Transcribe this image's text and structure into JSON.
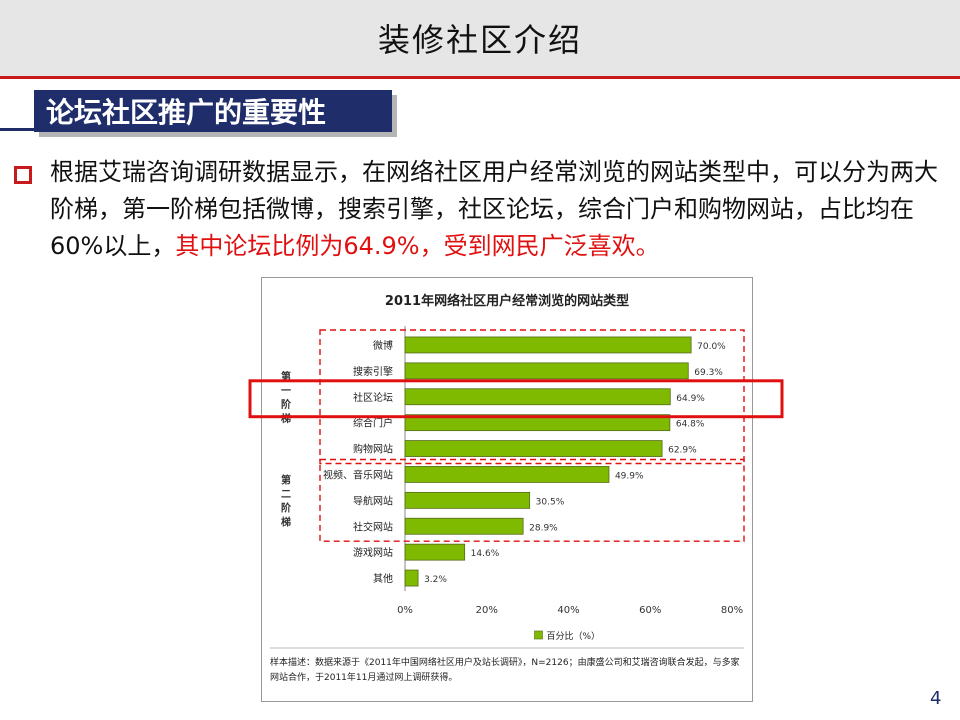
{
  "slide": {
    "title": "装修社区介绍",
    "section_heading": "论坛社区推广的重要性",
    "paragraph_normal": "根据艾瑞咨询调研数据显示，在网络社区用户经常浏览的网站类型中，可以分为两大阶梯，第一阶梯包括微博，搜索引擎，社区论坛，综合门户和购物网站，占比均在60%以上，",
    "paragraph_highlight": "其中论坛比例为64.9%，受到网民广泛喜欢。",
    "page_number": "4"
  },
  "chart_data": {
    "type": "bar",
    "orientation": "horizontal",
    "title": "2011年网络社区用户经常浏览的网站类型",
    "categories": [
      "微博",
      "搜索引擎",
      "社区论坛",
      "综合门户",
      "购物网站",
      "视频、音乐网站",
      "导航网站",
      "社交网站",
      "游戏网站",
      "其他"
    ],
    "values": [
      70.0,
      69.3,
      64.9,
      64.8,
      62.9,
      49.9,
      30.5,
      28.9,
      14.6,
      3.2
    ],
    "value_labels": [
      "70.0%",
      "69.3%",
      "64.9%",
      "64.8%",
      "62.9%",
      "49.9%",
      "30.5%",
      "28.9%",
      "14.6%",
      "3.2%"
    ],
    "series": [
      {
        "name": "百分比（%）",
        "values": [
          70.0,
          69.3,
          64.9,
          64.8,
          62.9,
          49.9,
          30.5,
          28.9,
          14.6,
          3.2
        ]
      }
    ],
    "xlim": [
      0,
      80
    ],
    "x_ticks": [
      "0%",
      "20%",
      "40%",
      "60%",
      "80%"
    ],
    "legend_position": "bottom",
    "tier_labels": [
      {
        "text": "第一阶梯",
        "rows": [
          0,
          4
        ]
      },
      {
        "text": "第二阶梯",
        "rows": [
          5,
          7
        ]
      }
    ],
    "highlight_row": 2,
    "bar_color": "#7fba00",
    "note": "样本描述：数据来源于《2011年中国网络社区用户及站长调研》，N=2126；由康盛公司和艾瑞咨询联合发起，与多家网站合作，于2011年11月通过网上调研获得。"
  },
  "colors": {
    "accent_red": "#c8191c",
    "navy": "#1f2d6b",
    "highlight_text": "#e01010"
  }
}
